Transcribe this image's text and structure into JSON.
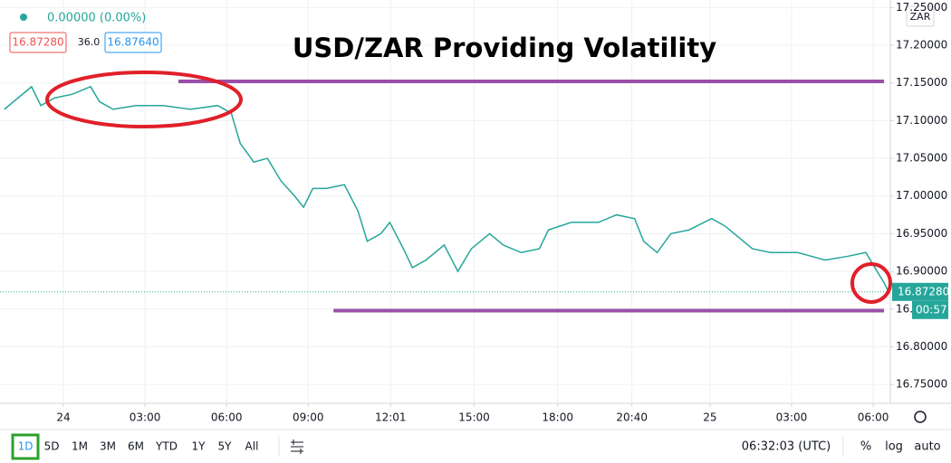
{
  "chart_data": {
    "type": "line",
    "title": "USD/ZAR Providing Volatility",
    "y_unit": "ZAR",
    "series": [
      {
        "name": "USD/ZAR",
        "color": "#26a69a",
        "x": [
          -2.17,
          -1.67,
          -1.17,
          -0.83,
          -0.33,
          0.33,
          1.0,
          1.33,
          1.83,
          2.67,
          3.67,
          4.67,
          5.67,
          6.17,
          6.5,
          7.0,
          7.5,
          8.0,
          8.5,
          8.83,
          9.17,
          9.67,
          10.33,
          10.83,
          11.17,
          11.67,
          12.0,
          12.5,
          12.83,
          13.33,
          14.0,
          14.5,
          15.0,
          15.67,
          16.17,
          16.83,
          17.5,
          17.83,
          18.67,
          19.67,
          20.33,
          21.0,
          21.33,
          21.83,
          22.33,
          23.0,
          23.83,
          24.33,
          24.83,
          25.33,
          26.0,
          27.0,
          28.0,
          28.83,
          29.5,
          29.83,
          30.17,
          30.33
        ],
        "values": [
          17.115,
          17.13,
          17.145,
          17.12,
          17.13,
          17.135,
          17.145,
          17.125,
          17.115,
          17.12,
          17.12,
          17.115,
          17.12,
          17.11,
          17.07,
          17.045,
          17.05,
          17.02,
          17.0,
          16.985,
          17.01,
          17.01,
          17.015,
          16.98,
          16.94,
          16.95,
          16.965,
          16.93,
          16.905,
          16.915,
          16.935,
          16.9,
          16.93,
          16.95,
          16.935,
          16.925,
          16.93,
          16.955,
          16.965,
          16.965,
          16.975,
          16.97,
          16.94,
          16.925,
          16.95,
          16.955,
          16.97,
          16.96,
          16.945,
          16.93,
          16.925,
          16.925,
          16.915,
          16.92,
          16.925,
          16.905,
          16.885,
          16.873
        ]
      }
    ],
    "last_price": {
      "value": 16.8728,
      "label": "16.87280"
    },
    "countdown": "00:57",
    "hlines": [
      {
        "value": 17.152,
        "x": [
          4.23,
          30.17
        ],
        "color": "#9b4fa8"
      },
      {
        "value": 16.848,
        "x": [
          9.93,
          30.17
        ],
        "color": "#9b4fa8"
      }
    ],
    "xlim": [
      -2.33,
      30.4
    ],
    "ylim": [
      16.725,
      17.26
    ],
    "grid": true,
    "xticks": [
      {
        "value": 0,
        "label": "24"
      },
      {
        "value": 3,
        "label": "03:00"
      },
      {
        "value": 6,
        "label": "06:00"
      },
      {
        "value": 9,
        "label": "09:00"
      },
      {
        "value": 12.03,
        "label": "12:01"
      },
      {
        "value": 15.1,
        "label": "15:00"
      },
      {
        "value": 18.17,
        "label": "18:00"
      },
      {
        "value": 20.9,
        "label": "20:40"
      },
      {
        "value": 23.77,
        "label": "25"
      },
      {
        "value": 26.77,
        "label": "03:00"
      },
      {
        "value": 29.77,
        "label": "06:00"
      }
    ],
    "yticks": [
      {
        "value": 17.25,
        "label": "17.25000"
      },
      {
        "value": 17.2,
        "label": "17.20000"
      },
      {
        "value": 17.15,
        "label": "17.15000"
      },
      {
        "value": 17.1,
        "label": "17.10000"
      },
      {
        "value": 17.05,
        "label": "17.05000"
      },
      {
        "value": 17.0,
        "label": "17.00000"
      },
      {
        "value": 16.95,
        "label": "16.95000"
      },
      {
        "value": 16.9,
        "label": "16.90000"
      },
      {
        "value": 16.85,
        "label": "16.85000"
      },
      {
        "value": 16.8,
        "label": "16.80000"
      },
      {
        "value": 16.75,
        "label": "16.75000"
      }
    ]
  },
  "header": {
    "change": "0.00000 (0.00%)",
    "bid": "16.87280",
    "spread": "36.0",
    "ask": "16.87640"
  },
  "toolbar": {
    "timeframes": [
      "1D",
      "5D",
      "1M",
      "3M",
      "6M",
      "YTD",
      "1Y",
      "5Y",
      "All"
    ],
    "clock": "06:32:03 (UTC)",
    "percent": "%",
    "log": "log",
    "auto": "auto"
  }
}
